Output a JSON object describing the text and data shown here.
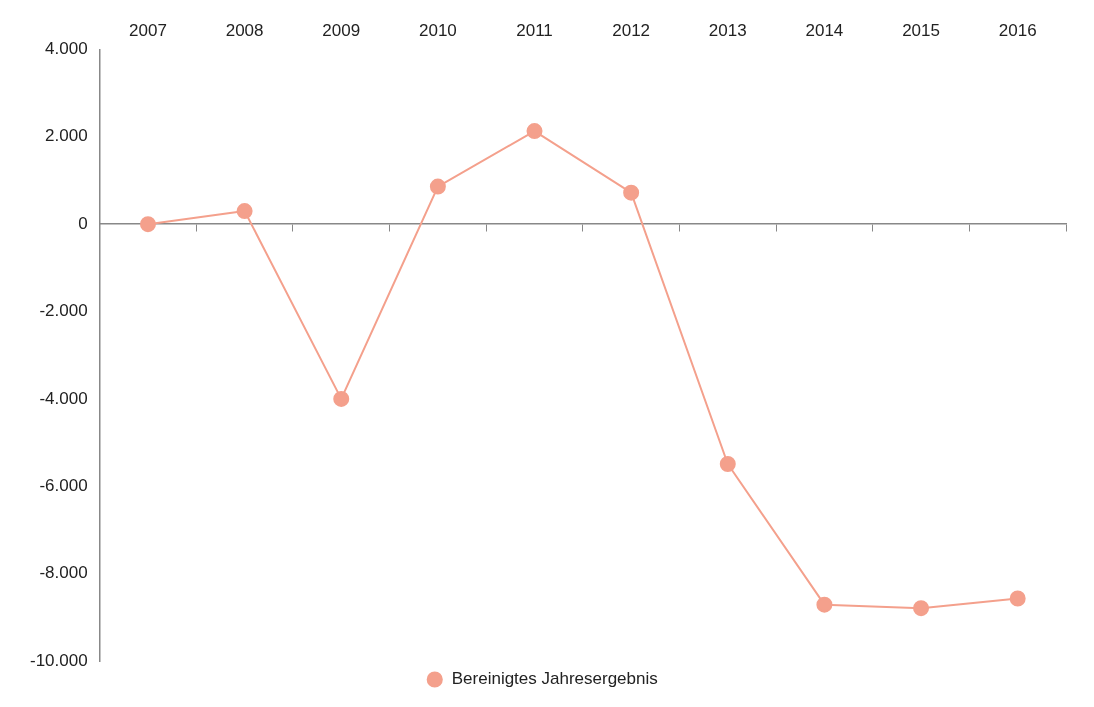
{
  "chart_data": {
    "type": "line",
    "categories": [
      "2007",
      "2008",
      "2009",
      "2010",
      "2011",
      "2012",
      "2013",
      "2014",
      "2015",
      "2016"
    ],
    "series": [
      {
        "name": "Bereinigtes Jahresergebnis",
        "color": "#f4a08c",
        "values": [
          0,
          300,
          -4000,
          860,
          2130,
          720,
          -5490,
          -8710,
          -8790,
          -8570
        ]
      }
    ],
    "ylim": [
      -10000,
      4000
    ],
    "yticks": [
      {
        "value": -10000,
        "label": "-10.000"
      },
      {
        "value": -8000,
        "label": "-8.000"
      },
      {
        "value": -6000,
        "label": "-6.000"
      },
      {
        "value": -4000,
        "label": "-4.000"
      },
      {
        "value": -2000,
        "label": "-2.000"
      },
      0,
      {
        "value": 2000,
        "label": "2.000"
      },
      {
        "value": 4000,
        "label": "4.000"
      }
    ],
    "legend": "bottom",
    "marker": "circle",
    "line_style": "solid"
  }
}
